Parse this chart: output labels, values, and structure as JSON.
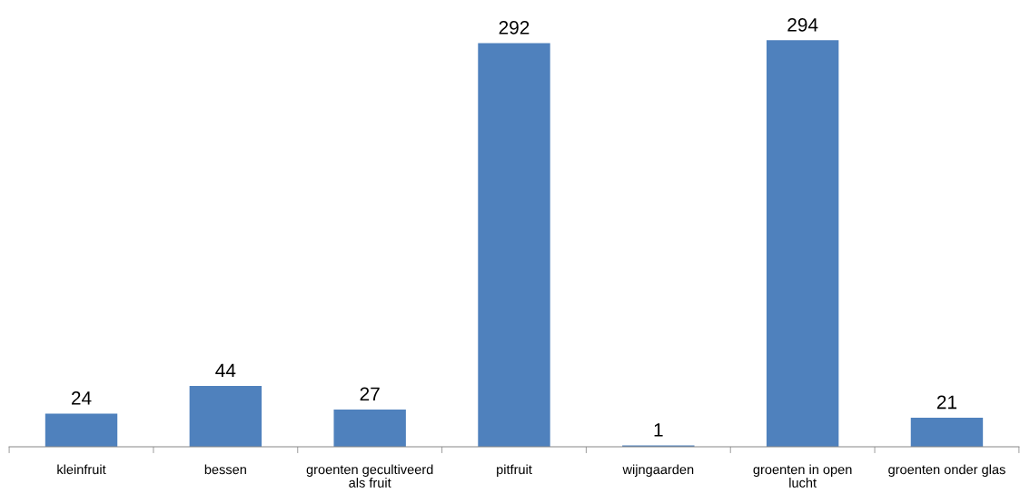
{
  "chart_data": {
    "type": "bar",
    "categories": [
      "kleinfruit",
      "bessen",
      "groenten gecultiveerd als fruit",
      "pitfruit",
      "wijngaarden",
      "groenten in open lucht",
      "groenten onder glas"
    ],
    "values": [
      24,
      44,
      27,
      292,
      1,
      294,
      21
    ],
    "color": "#4f81bd",
    "data_labels": true,
    "grid": false,
    "legend": false
  }
}
